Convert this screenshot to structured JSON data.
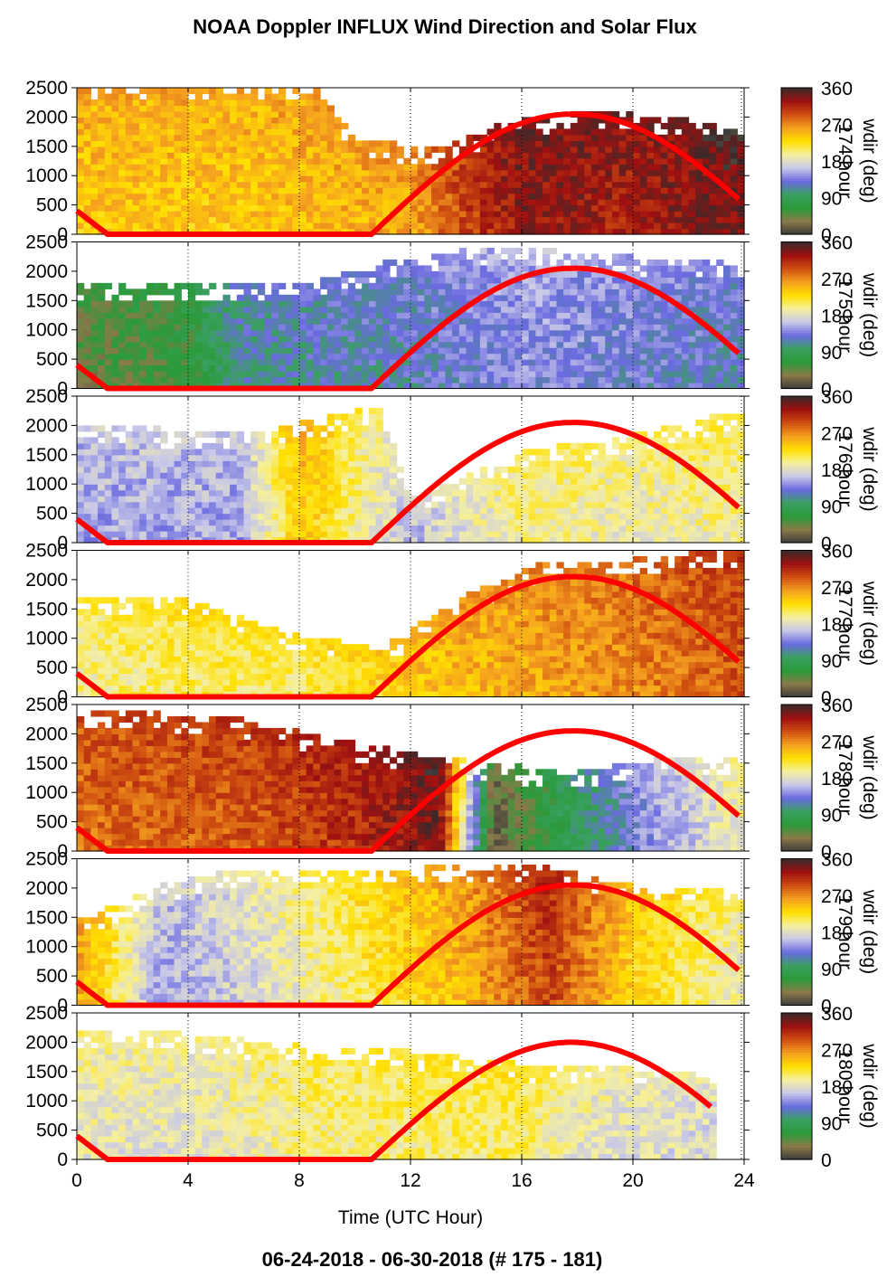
{
  "title": "NOAA Doppler INFLUX Wind Direction and Solar Flux",
  "footer": "06-24-2018 - 06-30-2018   (# 175 - 181)",
  "colors": {
    "solar_flux_line": "#ff0000",
    "colormap": [
      "#3a3a3a",
      "#8a7a4a",
      "#2a9a3a",
      "#3aa060",
      "#6a6ae0",
      "#c8c8e8",
      "#f5f0a0",
      "#ffe000",
      "#f5a020",
      "#d05010",
      "#a01010",
      "#3a2a2a"
    ]
  },
  "chart_data": {
    "type": "heatmap",
    "xlabel": "Time (UTC Hour)",
    "x_ticks": [
      0,
      4,
      8,
      12,
      16,
      20,
      24
    ],
    "xlim": [
      0,
      24
    ],
    "ylim": [
      0,
      2500
    ],
    "y_ticks": [
      0,
      500,
      1000,
      1500,
      2000,
      2500
    ],
    "grid": "vertical dotted at every 4 hours",
    "colorbar": {
      "label": "wdir (deg)",
      "ticks": [
        0,
        90,
        180,
        270,
        360
      ]
    },
    "panels": [
      {
        "day_label": "174 hour",
        "data_end_hour": 23.8,
        "dominant_directions": [
          [
            0,
            240
          ],
          [
            6,
            240
          ],
          [
            12,
            255
          ],
          [
            14,
            300
          ],
          [
            16,
            330
          ],
          [
            20,
            320
          ],
          [
            23.8,
            340
          ]
        ],
        "data_top": [
          [
            0,
            2500
          ],
          [
            8.5,
            2500
          ],
          [
            10,
            1600
          ],
          [
            13,
            1400
          ],
          [
            15,
            1800
          ],
          [
            18,
            2100
          ],
          [
            22,
            1900
          ],
          [
            23.8,
            1700
          ]
        ],
        "solar_flux": [
          [
            0,
            400
          ],
          [
            1.1,
            0
          ],
          [
            10.6,
            0
          ],
          [
            17.8,
            2050
          ],
          [
            23.8,
            600
          ]
        ]
      },
      {
        "day_label": "175 hour",
        "data_end_hour": 23.8,
        "dominant_directions": [
          [
            0,
            40
          ],
          [
            4,
            60
          ],
          [
            6,
            110
          ],
          [
            12,
            120
          ],
          [
            16,
            140
          ],
          [
            23.8,
            120
          ]
        ],
        "data_top": [
          [
            0,
            1700
          ],
          [
            4,
            1800
          ],
          [
            8,
            1700
          ],
          [
            11,
            2100
          ],
          [
            15,
            2400
          ],
          [
            20,
            2200
          ],
          [
            23.8,
            2100
          ]
        ],
        "solar_flux": [
          [
            0,
            400
          ],
          [
            1.1,
            0
          ],
          [
            10.6,
            0
          ],
          [
            17.8,
            2050
          ],
          [
            23.8,
            600
          ]
        ]
      },
      {
        "day_label": "176 hour",
        "data_end_hour": 23.8,
        "dominant_directions": [
          [
            0,
            150
          ],
          [
            6,
            150
          ],
          [
            8,
            240
          ],
          [
            12,
            160
          ],
          [
            16,
            200
          ],
          [
            20,
            190
          ],
          [
            23.8,
            200
          ]
        ],
        "data_top": [
          [
            0,
            2000
          ],
          [
            6,
            1800
          ],
          [
            11,
            2300
          ],
          [
            12,
            700
          ],
          [
            16,
            1500
          ],
          [
            20,
            1800
          ],
          [
            23.8,
            2200
          ]
        ],
        "solar_flux": [
          [
            0,
            400
          ],
          [
            1.1,
            0
          ],
          [
            10.6,
            0
          ],
          [
            17.8,
            2050
          ],
          [
            23.8,
            600
          ]
        ]
      },
      {
        "day_label": "177 hour",
        "data_end_hour": 23.8,
        "dominant_directions": [
          [
            0,
            200
          ],
          [
            4,
            210
          ],
          [
            8,
            210
          ],
          [
            12,
            240
          ],
          [
            16,
            255
          ],
          [
            20,
            270
          ],
          [
            23.8,
            290
          ]
        ],
        "data_top": [
          [
            0,
            1700
          ],
          [
            4,
            1600
          ],
          [
            8,
            1000
          ],
          [
            11,
            800
          ],
          [
            14,
            1700
          ],
          [
            17,
            2300
          ],
          [
            20,
            2300
          ],
          [
            23.8,
            2500
          ]
        ],
        "solar_flux": [
          [
            0,
            400
          ],
          [
            1.1,
            0
          ],
          [
            10.6,
            0
          ],
          [
            17.8,
            2050
          ],
          [
            23.8,
            600
          ]
        ]
      },
      {
        "day_label": "178 hour",
        "data_end_hour": 23.8,
        "dominant_directions": [
          [
            0,
            280
          ],
          [
            6,
            290
          ],
          [
            10,
            310
          ],
          [
            13,
            340
          ],
          [
            15,
            20
          ],
          [
            18,
            90
          ],
          [
            21,
            150
          ],
          [
            23.8,
            190
          ]
        ],
        "data_top": [
          [
            0,
            2400
          ],
          [
            6,
            2200
          ],
          [
            10,
            1800
          ],
          [
            14,
            1500
          ],
          [
            18,
            1300
          ],
          [
            22,
            1600
          ],
          [
            23.8,
            1500
          ]
        ],
        "solar_flux": [
          [
            0,
            400
          ],
          [
            1.1,
            0
          ],
          [
            10.6,
            0
          ],
          [
            17.8,
            2050
          ],
          [
            23.8,
            600
          ]
        ]
      },
      {
        "day_label": "179 hour",
        "data_end_hour": 23.8,
        "dominant_directions": [
          [
            0,
            260
          ],
          [
            3,
            150
          ],
          [
            6,
            170
          ],
          [
            10,
            210
          ],
          [
            14,
            250
          ],
          [
            17,
            300
          ],
          [
            20,
            230
          ],
          [
            23.8,
            190
          ]
        ],
        "data_top": [
          [
            0,
            1400
          ],
          [
            3,
            2000
          ],
          [
            6,
            2300
          ],
          [
            12,
            2300
          ],
          [
            16,
            2400
          ],
          [
            20,
            2000
          ],
          [
            23.8,
            2000
          ]
        ],
        "solar_flux": [
          [
            0,
            400
          ],
          [
            1.1,
            0
          ],
          [
            10.6,
            0
          ],
          [
            17.8,
            2050
          ],
          [
            23.8,
            600
          ]
        ]
      },
      {
        "day_label": "180 hour",
        "data_end_hour": 22.8,
        "dominant_directions": [
          [
            0,
            185
          ],
          [
            4,
            180
          ],
          [
            8,
            200
          ],
          [
            12,
            205
          ],
          [
            16,
            210
          ],
          [
            18,
            185
          ],
          [
            22.8,
            175
          ]
        ],
        "data_top": [
          [
            0,
            2200
          ],
          [
            4,
            2100
          ],
          [
            8,
            1900
          ],
          [
            12,
            1800
          ],
          [
            16,
            1600
          ],
          [
            20,
            1500
          ],
          [
            22.8,
            1500
          ]
        ],
        "solar_flux": [
          [
            0,
            400
          ],
          [
            1.1,
            0
          ],
          [
            10.6,
            0
          ],
          [
            17.8,
            2000
          ],
          [
            22.8,
            900
          ]
        ]
      }
    ]
  }
}
